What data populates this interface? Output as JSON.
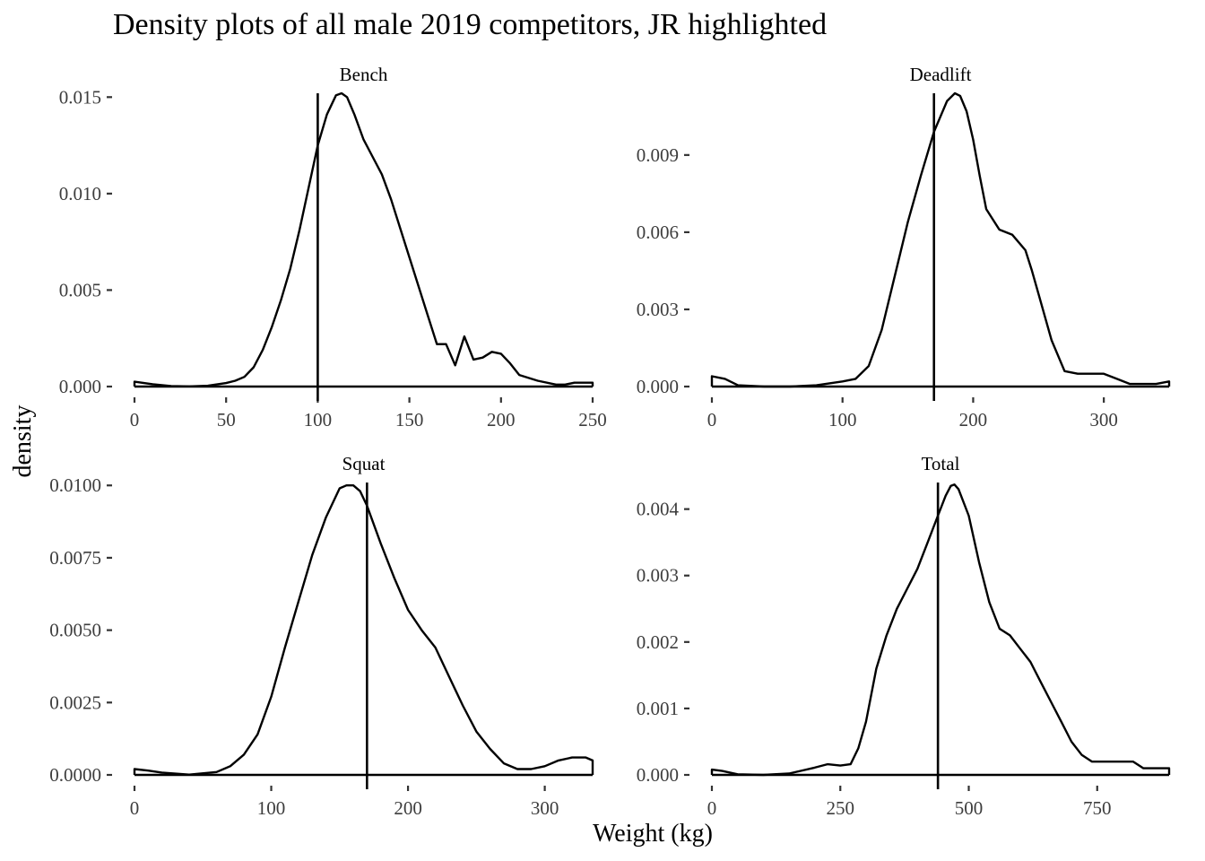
{
  "chart_data": {
    "type": "area",
    "title": "Density plots of all male 2019 competitors, JR highlighted",
    "xlabel": "Weight (kg)",
    "ylabel": "density",
    "grid": false,
    "legend": "none",
    "panels": [
      {
        "name": "Bench",
        "xlim": [
          0,
          250
        ],
        "ylim": [
          0,
          0.0152
        ],
        "xticks": [
          0,
          50,
          100,
          150,
          200,
          250
        ],
        "xtick_labels": [
          "0",
          "50",
          "100",
          "150",
          "200",
          "250"
        ],
        "yticks": [
          0,
          0.005,
          0.01,
          0.015
        ],
        "ytick_labels": [
          "0.000",
          "0.005",
          "0.010",
          "0.015"
        ],
        "highlight_x": 100,
        "x": [
          0,
          10,
          20,
          30,
          40,
          50,
          55,
          60,
          65,
          70,
          75,
          80,
          85,
          90,
          95,
          100,
          105,
          110,
          113,
          116,
          120,
          125,
          130,
          135,
          140,
          145,
          150,
          155,
          160,
          165,
          170,
          175,
          180,
          185,
          190,
          195,
          200,
          205,
          210,
          220,
          230,
          235,
          240,
          250
        ],
        "y": [
          0.00025,
          0.00012,
          3e-05,
          1e-05,
          4e-05,
          0.00018,
          0.0003,
          0.0005,
          0.001,
          0.0019,
          0.0031,
          0.0045,
          0.0061,
          0.0081,
          0.0103,
          0.0125,
          0.0141,
          0.0151,
          0.0152,
          0.015,
          0.0141,
          0.0128,
          0.0119,
          0.011,
          0.0097,
          0.0082,
          0.0067,
          0.0052,
          0.0037,
          0.0022,
          0.0022,
          0.0011,
          0.0026,
          0.0014,
          0.0015,
          0.0018,
          0.0017,
          0.0012,
          0.0006,
          0.0003,
          0.0001,
          0.0001,
          0.0002,
          0.0002
        ]
      },
      {
        "name": "Deadlift",
        "xlim": [
          0,
          350
        ],
        "ylim": [
          0,
          0.0114
        ],
        "xticks": [
          0,
          100,
          200,
          300
        ],
        "xtick_labels": [
          "0",
          "100",
          "200",
          "300"
        ],
        "yticks": [
          0,
          0.003,
          0.006,
          0.009
        ],
        "ytick_labels": [
          "0.000",
          "0.003",
          "0.006",
          "0.009"
        ],
        "highlight_x": 170,
        "x": [
          0,
          10,
          20,
          40,
          60,
          80,
          100,
          110,
          120,
          130,
          140,
          150,
          160,
          170,
          180,
          186,
          190,
          195,
          200,
          205,
          210,
          220,
          230,
          240,
          245,
          250,
          260,
          270,
          280,
          290,
          300,
          310,
          320,
          330,
          340,
          350
        ],
        "y": [
          0.0004,
          0.0003,
          5e-05,
          0,
          0,
          5e-05,
          0.0002,
          0.0003,
          0.0008,
          0.0022,
          0.0043,
          0.0064,
          0.0082,
          0.0099,
          0.0111,
          0.0114,
          0.0113,
          0.0107,
          0.0096,
          0.0082,
          0.0069,
          0.0061,
          0.0059,
          0.0053,
          0.0045,
          0.0036,
          0.0018,
          0.0006,
          0.0005,
          0.0005,
          0.0005,
          0.0003,
          0.0001,
          0.0001,
          0.0001,
          0.0002
        ]
      },
      {
        "name": "Squat",
        "xlim": [
          0,
          335
        ],
        "ylim": [
          0,
          0.0101
        ],
        "xticks": [
          0,
          100,
          200,
          300
        ],
        "xtick_labels": [
          "0",
          "100",
          "200",
          "300"
        ],
        "yticks": [
          0,
          0.0025,
          0.005,
          0.0075,
          0.01
        ],
        "ytick_labels": [
          "0.0000",
          "0.0025",
          "0.0050",
          "0.0075",
          "0.0100"
        ],
        "highlight_x": 170,
        "x": [
          0,
          10,
          20,
          40,
          60,
          70,
          80,
          90,
          100,
          110,
          120,
          130,
          140,
          150,
          155,
          160,
          165,
          170,
          180,
          190,
          200,
          210,
          220,
          230,
          240,
          250,
          260,
          270,
          280,
          290,
          300,
          310,
          320,
          330,
          335
        ],
        "y": [
          0.0002,
          0.00015,
          8e-05,
          1e-05,
          0.0001,
          0.0003,
          0.0007,
          0.0014,
          0.0027,
          0.0044,
          0.006,
          0.0076,
          0.0089,
          0.0099,
          0.01,
          0.01,
          0.0098,
          0.0093,
          0.008,
          0.0068,
          0.0057,
          0.005,
          0.0044,
          0.0034,
          0.0024,
          0.0015,
          0.0009,
          0.0004,
          0.0002,
          0.0002,
          0.0003,
          0.0005,
          0.0006,
          0.0006,
          0.0005
        ]
      },
      {
        "name": "Total",
        "xlim": [
          0,
          890
        ],
        "ylim": [
          0,
          0.0044
        ],
        "xticks": [
          0,
          250,
          500,
          750
        ],
        "xtick_labels": [
          "0",
          "250",
          "500",
          "750"
        ],
        "yticks": [
          0,
          0.001,
          0.002,
          0.003,
          0.004
        ],
        "ytick_labels": [
          "0.000",
          "0.001",
          "0.002",
          "0.003",
          "0.004"
        ],
        "highlight_x": 440,
        "x": [
          0,
          20,
          50,
          100,
          150,
          200,
          225,
          250,
          270,
          285,
          300,
          320,
          340,
          360,
          380,
          400,
          420,
          440,
          455,
          465,
          472,
          480,
          500,
          520,
          540,
          560,
          580,
          600,
          620,
          640,
          660,
          680,
          700,
          720,
          740,
          760,
          780,
          800,
          820,
          840,
          860,
          890
        ],
        "y": [
          8e-05,
          6e-05,
          1e-05,
          0,
          2e-05,
          0.00011,
          0.00016,
          0.00014,
          0.00016,
          0.0004,
          0.0008,
          0.0016,
          0.0021,
          0.0025,
          0.0028,
          0.0031,
          0.0035,
          0.0039,
          0.0042,
          0.00435,
          0.00437,
          0.0043,
          0.0039,
          0.0032,
          0.0026,
          0.0022,
          0.0021,
          0.0019,
          0.0017,
          0.0014,
          0.0011,
          0.0008,
          0.0005,
          0.0003,
          0.0002,
          0.0002,
          0.0002,
          0.0002,
          0.0002,
          0.0001,
          0.0001,
          0.0001
        ]
      }
    ]
  }
}
